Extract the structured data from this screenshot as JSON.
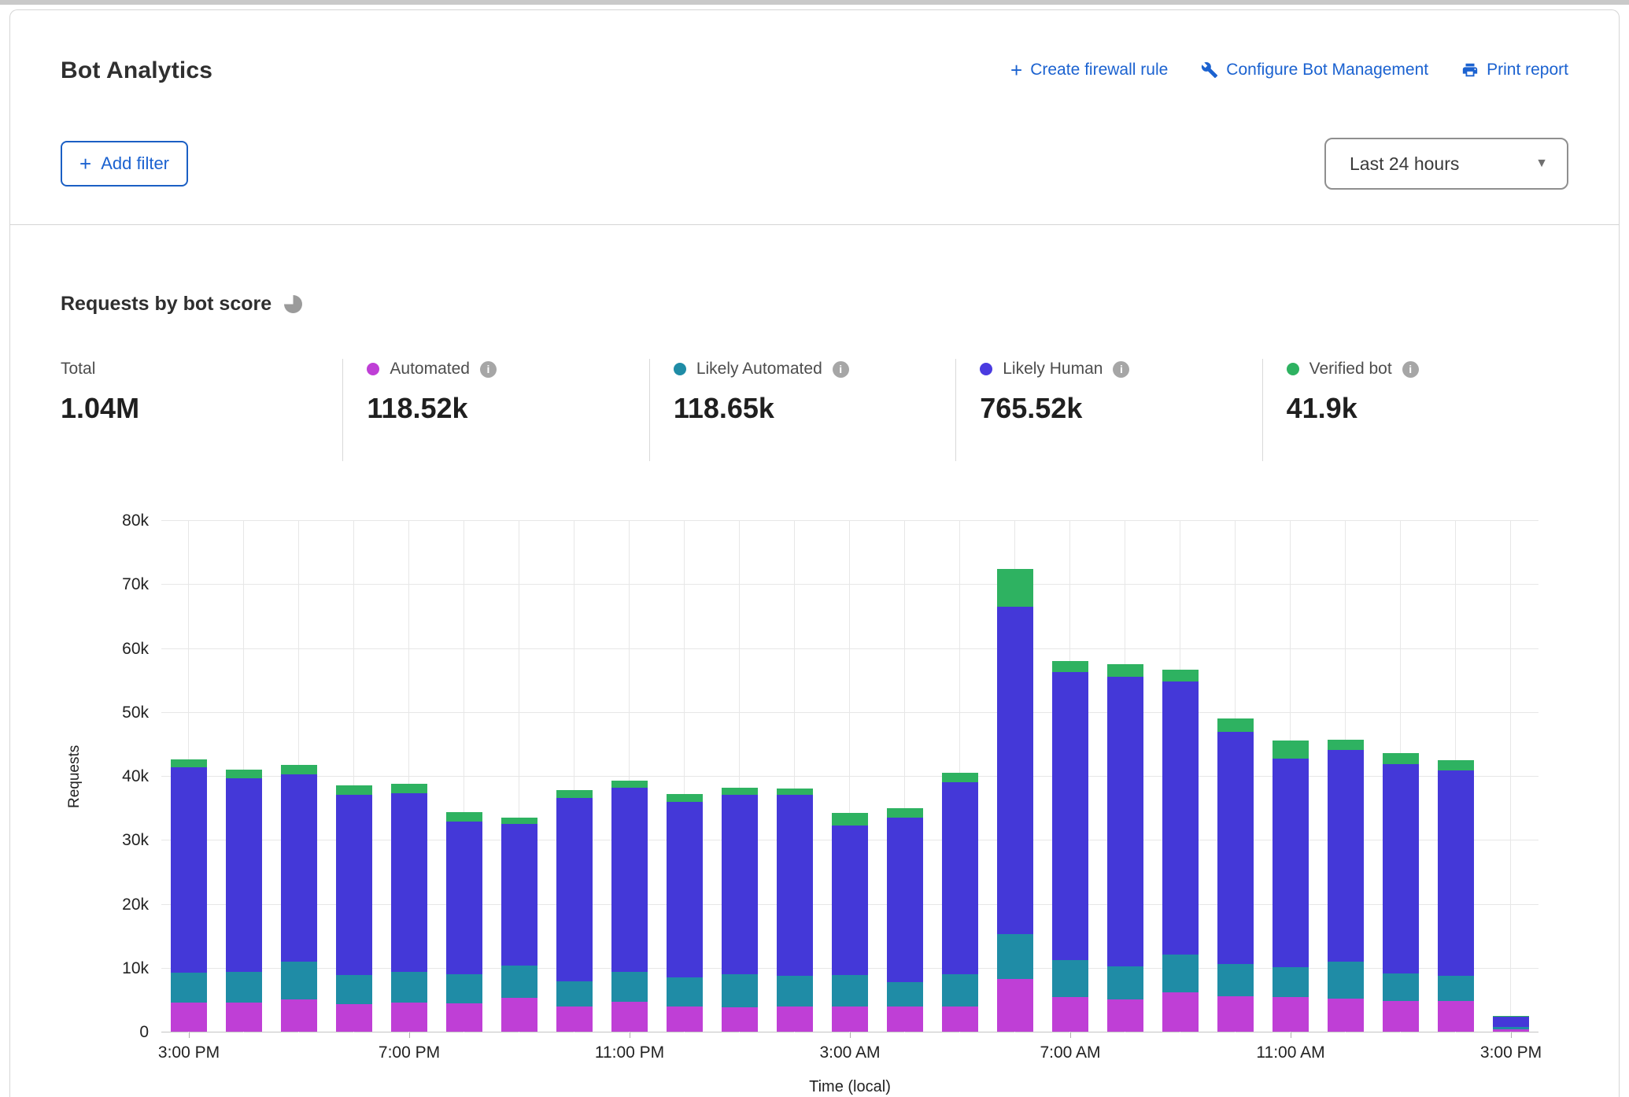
{
  "header": {
    "title": "Bot Analytics",
    "actions": [
      {
        "label": "Create firewall rule",
        "icon": "plus-icon"
      },
      {
        "label": "Configure Bot Management",
        "icon": "wrench-icon"
      },
      {
        "label": "Print report",
        "icon": "printer-icon"
      }
    ]
  },
  "filters": {
    "add_filter_label": "Add filter",
    "time_range_value": "Last 24 hours"
  },
  "section": {
    "title": "Requests by bot score",
    "icon": "pie-chart-icon"
  },
  "stats": [
    {
      "label": "Total",
      "value": "1.04M",
      "color": null,
      "info_icon": false
    },
    {
      "label": "Automated",
      "value": "118.52k",
      "color": "#bf3fd6",
      "info_icon": true
    },
    {
      "label": "Likely Automated",
      "value": "118.65k",
      "color": "#1f8ca6",
      "info_icon": true
    },
    {
      "label": "Likely Human",
      "value": "765.52k",
      "color": "#4a3be0",
      "info_icon": true
    },
    {
      "label": "Verified bot",
      "value": "41.9k",
      "color": "#2eb261",
      "info_icon": true
    }
  ],
  "chart_data": {
    "type": "bar",
    "stacked": true,
    "title": "Requests by bot score",
    "xlabel": "Time (local)",
    "ylabel": "Requests",
    "ylim": [
      0,
      80000
    ],
    "grid": true,
    "legend_position": "top-stat-cards",
    "y_ticks": [
      "0",
      "10k",
      "20k",
      "30k",
      "40k",
      "50k",
      "60k",
      "70k",
      "80k"
    ],
    "x_ticks": [
      {
        "index": 0,
        "label": "3:00 PM"
      },
      {
        "index": 4,
        "label": "7:00 PM"
      },
      {
        "index": 8,
        "label": "11:00 PM"
      },
      {
        "index": 12,
        "label": "3:00 AM"
      },
      {
        "index": 16,
        "label": "7:00 AM"
      },
      {
        "index": 20,
        "label": "11:00 AM"
      },
      {
        "index": 24,
        "label": "3:00 PM"
      }
    ],
    "categories": [
      "3:00 PM",
      "4:00 PM",
      "5:00 PM",
      "6:00 PM",
      "7:00 PM",
      "8:00 PM",
      "9:00 PM",
      "10:00 PM",
      "11:00 PM",
      "12:00 AM",
      "1:00 AM",
      "2:00 AM",
      "3:00 AM",
      "4:00 AM",
      "5:00 AM",
      "6:00 AM",
      "7:00 AM",
      "8:00 AM",
      "9:00 AM",
      "10:00 AM",
      "11:00 AM",
      "12:00 PM",
      "1:00 PM",
      "2:00 PM",
      "3:00 PM"
    ],
    "series": [
      {
        "name": "Automated",
        "color": "#bf3fd6",
        "values": [
          4600,
          4500,
          5000,
          4300,
          4600,
          4400,
          5300,
          3900,
          4700,
          4000,
          3800,
          4000,
          3900,
          4000,
          4000,
          8300,
          5400,
          5000,
          6100,
          5600,
          5400,
          5200,
          4750,
          4750,
          400
        ]
      },
      {
        "name": "Likely Automated",
        "color": "#1f8ca6",
        "values": [
          4600,
          4800,
          6000,
          4600,
          4700,
          4600,
          5100,
          4000,
          4700,
          4500,
          5200,
          4700,
          5000,
          3700,
          5000,
          7000,
          5800,
          5200,
          6000,
          5000,
          4700,
          5800,
          4350,
          3950,
          300
        ]
      },
      {
        "name": "Likely Human",
        "color": "#4438d8",
        "values": [
          32100,
          30300,
          29200,
          28100,
          28000,
          23900,
          22100,
          28700,
          28700,
          27500,
          28000,
          28400,
          23300,
          25800,
          30000,
          51200,
          45000,
          45300,
          42700,
          36300,
          32600,
          33100,
          32800,
          32200,
          1700
        ]
      },
      {
        "name": "Verified bot",
        "color": "#2eb261",
        "values": [
          1300,
          1400,
          1500,
          1500,
          1500,
          1400,
          1000,
          1200,
          1200,
          1200,
          1100,
          900,
          2000,
          1400,
          1500,
          5900,
          1800,
          2000,
          1800,
          2100,
          2900,
          1600,
          1700,
          1600,
          100
        ]
      }
    ]
  }
}
